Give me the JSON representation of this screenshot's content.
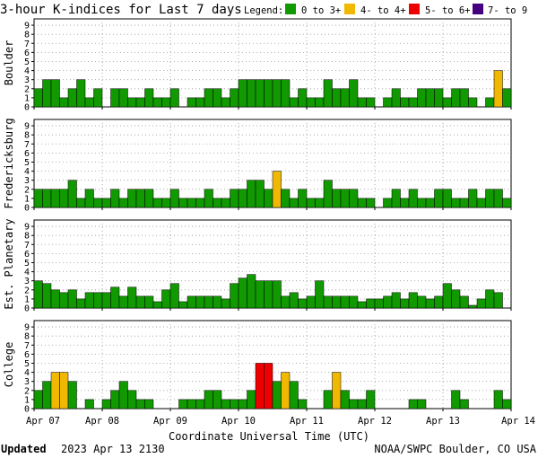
{
  "title": "3-hour K-indices for Last 7 days",
  "legend": {
    "label": "Legend:",
    "items": [
      {
        "label": "0 to 3+",
        "color": "#119900"
      },
      {
        "label": "4- to 4+",
        "color": "#f0b800"
      },
      {
        "label": "5- to 6+",
        "color": "#ee0000"
      },
      {
        "label": "7- to 9",
        "color": "#44007f"
      }
    ]
  },
  "xlabel": "Coordinate Universal Time (UTC)",
  "footer": {
    "updated_label": "Updated",
    "updated_value": "2023 Apr 13 2130",
    "credit": "NOAA/SWPC Boulder, CO USA"
  },
  "chart_data": [
    {
      "type": "bar",
      "name": "Boulder",
      "ylabel": "Boulder",
      "ylim": [
        0,
        9
      ],
      "yticks": [
        "0",
        "1",
        "2",
        "3",
        "4",
        "5",
        "6",
        "7",
        "8",
        "9"
      ],
      "xticks": [
        "Apr 07",
        "Apr 08",
        "Apr 09",
        "Apr 10",
        "Apr 11",
        "Apr 12",
        "Apr 13",
        "Apr 14"
      ],
      "bars_per_day": 8,
      "values": [
        2,
        3,
        3,
        1,
        2,
        3,
        1,
        2,
        0,
        2,
        2,
        1,
        1,
        2,
        1,
        1,
        2,
        0,
        1,
        1,
        2,
        2,
        1,
        2,
        3,
        3,
        3,
        3,
        3,
        3,
        1,
        2,
        1,
        1,
        3,
        2,
        2,
        3,
        1,
        1,
        0,
        1,
        2,
        1,
        1,
        2,
        2,
        2,
        1,
        2,
        2,
        1,
        0,
        1,
        4,
        2,
        0
      ]
    },
    {
      "type": "bar",
      "name": "Fredericksburg",
      "ylabel": "Fredericksburg",
      "ylim": [
        0,
        9
      ],
      "yticks": [
        "0",
        "1",
        "2",
        "3",
        "4",
        "5",
        "6",
        "7",
        "8",
        "9"
      ],
      "xticks": [
        "Apr 07",
        "Apr 08",
        "Apr 09",
        "Apr 10",
        "Apr 11",
        "Apr 12",
        "Apr 13",
        "Apr 14"
      ],
      "bars_per_day": 8,
      "values": [
        2,
        2,
        2,
        2,
        3,
        1,
        2,
        1,
        1,
        2,
        1,
        2,
        2,
        2,
        1,
        1,
        2,
        1,
        1,
        1,
        2,
        1,
        1,
        2,
        2,
        3,
        3,
        2,
        4,
        2,
        1,
        2,
        1,
        1,
        3,
        2,
        2,
        2,
        1,
        1,
        0,
        1,
        2,
        1,
        2,
        1,
        1,
        2,
        2,
        1,
        1,
        2,
        1,
        2,
        2,
        1,
        0
      ]
    },
    {
      "type": "bar",
      "name": "Est. Planetary",
      "ylabel": "Est. Planetary",
      "ylim": [
        0,
        9
      ],
      "yticks": [
        "0",
        "1",
        "2",
        "3",
        "4",
        "5",
        "6",
        "7",
        "8",
        "9"
      ],
      "xticks": [
        "Apr 07",
        "Apr 08",
        "Apr 09",
        "Apr 10",
        "Apr 11",
        "Apr 12",
        "Apr 13",
        "Apr 14"
      ],
      "bars_per_day": 8,
      "values": [
        3,
        2.7,
        2,
        1.7,
        2,
        1,
        1.7,
        1.7,
        1.7,
        2.3,
        1.3,
        2.3,
        1.3,
        1.3,
        0.7,
        2,
        2.7,
        0.7,
        1.3,
        1.3,
        1.3,
        1.3,
        1,
        2.7,
        3.3,
        3.7,
        3,
        3,
        3,
        1.3,
        1.7,
        1,
        1.3,
        3,
        1.3,
        1.3,
        1.3,
        1.3,
        0.7,
        1,
        1,
        1.3,
        1.7,
        1,
        1.7,
        1.3,
        1,
        1.3,
        2.7,
        2,
        1.3,
        0.3,
        1,
        2,
        1.7
      ]
    },
    {
      "type": "bar",
      "name": "College",
      "ylabel": "College",
      "ylim": [
        0,
        9
      ],
      "yticks": [
        "0",
        "1",
        "2",
        "3",
        "4",
        "5",
        "6",
        "7",
        "8",
        "9"
      ],
      "xticks": [
        "Apr 07",
        "Apr 08",
        "Apr 09",
        "Apr 10",
        "Apr 11",
        "Apr 12",
        "Apr 13",
        "Apr 14"
      ],
      "bars_per_day": 8,
      "values": [
        2,
        3,
        4,
        4,
        3,
        0,
        1,
        0,
        1,
        2,
        3,
        2,
        1,
        1,
        0,
        0,
        0,
        1,
        1,
        1,
        2,
        2,
        1,
        1,
        1,
        2,
        5,
        5,
        3,
        4,
        3,
        1,
        0,
        0,
        2,
        4,
        2,
        1,
        1,
        2,
        0,
        0,
        0,
        0,
        1,
        1,
        0,
        0,
        0,
        2,
        1,
        0,
        0,
        0,
        2,
        1,
        0
      ]
    }
  ]
}
